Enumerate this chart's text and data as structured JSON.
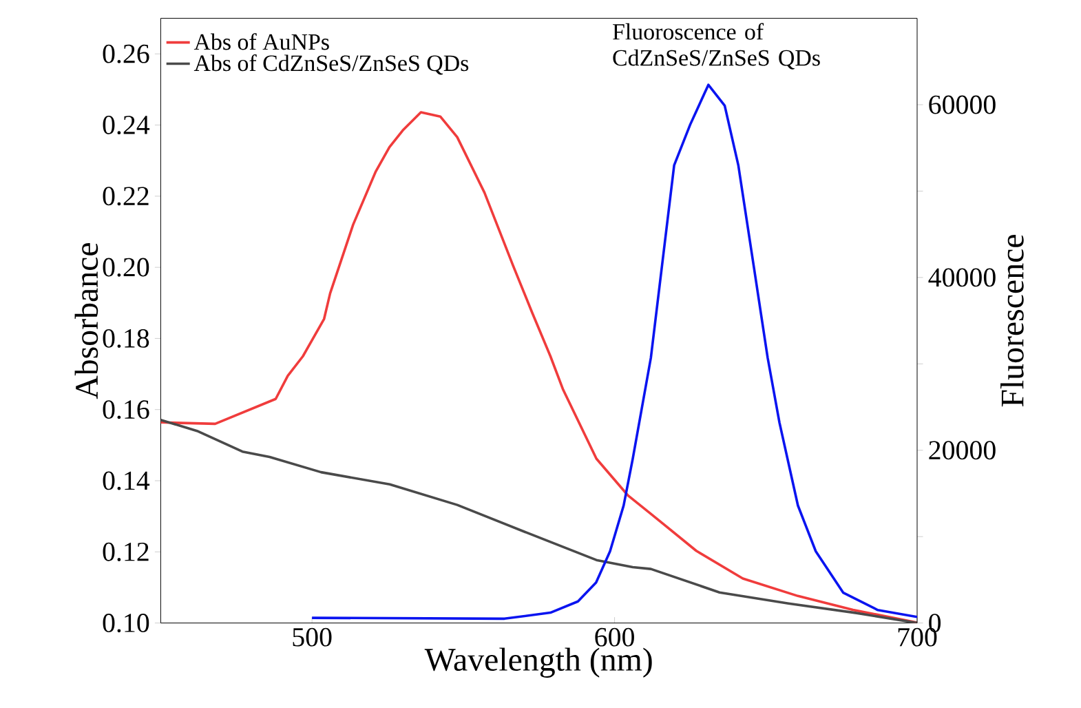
{
  "chart_data": {
    "type": "line",
    "xlabel": "Wavelength (nm)",
    "ylabel": "Absorbance",
    "y2label": "Fluorescence",
    "xlim": [
      450,
      700
    ],
    "ylim": [
      0.1,
      0.27
    ],
    "y2lim": [
      0,
      70000
    ],
    "xticks": [
      500,
      600,
      700
    ],
    "yticks": [
      {
        "value": 0.1,
        "label": "0.10"
      },
      {
        "value": 0.12,
        "label": "0.12"
      },
      {
        "value": 0.14,
        "label": "0.14"
      },
      {
        "value": 0.16,
        "label": "0.16"
      },
      {
        "value": 0.18,
        "label": "0.18"
      },
      {
        "value": 0.2,
        "label": "0.20"
      },
      {
        "value": 0.22,
        "label": "0.22"
      },
      {
        "value": 0.24,
        "label": "0.24"
      },
      {
        "value": 0.26,
        "label": "0.26"
      }
    ],
    "y2ticks": [
      0,
      {
        "value": 10000,
        "label": null
      },
      20000,
      {
        "value": 30000,
        "label": null
      },
      40000,
      {
        "value": 50000,
        "label": null
      },
      60000
    ],
    "legend": "top left",
    "grid": false,
    "marker": "none",
    "line_style": "solid",
    "series": [
      {
        "name": "Abs of AuNPs",
        "color": "#f03c3c",
        "x": [
          450,
          468,
          488,
          492,
          497,
          504,
          506,
          513.6,
          521,
          525.6,
          530,
          536,
          542.4,
          548,
          557,
          566.5,
          572.7,
          578.8,
          583,
          594,
          604.5,
          612,
          627,
          642.4,
          660.6,
          678.8,
          700
        ],
        "values": [
          0.1564,
          0.156,
          0.163,
          0.1695,
          0.175,
          0.1855,
          0.1927,
          0.212,
          0.2268,
          0.2338,
          0.2385,
          0.2436,
          0.2424,
          0.2366,
          0.221,
          0.2004,
          0.1874,
          0.175,
          0.1656,
          0.1462,
          0.1358,
          0.1307,
          0.1203,
          0.1125,
          0.1076,
          0.1037,
          0.1001
        ]
      },
      {
        "name": "Abs of CdZnSeS/ZnSeS QDs",
        "color": "#4a4a4a",
        "x": [
          450,
          462,
          477,
          486,
          503,
          525.7,
          548,
          571,
          594,
          606,
          612,
          634.7,
          657.5,
          680,
          700
        ],
        "values": [
          0.1571,
          0.154,
          0.1482,
          0.1467,
          0.1424,
          0.139,
          0.1332,
          0.1254,
          0.1177,
          0.1157,
          0.1152,
          0.1086,
          0.1055,
          0.1028,
          0.1
        ]
      },
      {
        "name": "Fluoroscence of CdZnSeS/ZnSeS QDs",
        "color": "#0a14f0",
        "axis": "y2",
        "x": [
          500,
          563.6,
          578.8,
          587.9,
          593.9,
          598.5,
          603,
          606,
          612,
          619.7,
          625,
          631,
          636.4,
          640.9,
          646,
          650.6,
          654.5,
          660.6,
          666.5,
          675.6,
          687,
          700
        ],
        "values": [
          600,
          500,
          1200,
          2500,
          4700,
          8300,
          13600,
          19000,
          30700,
          53000,
          57700,
          62300,
          59900,
          53000,
          41300,
          30700,
          23200,
          13600,
          8300,
          3500,
          1500,
          700
        ]
      }
    ]
  }
}
